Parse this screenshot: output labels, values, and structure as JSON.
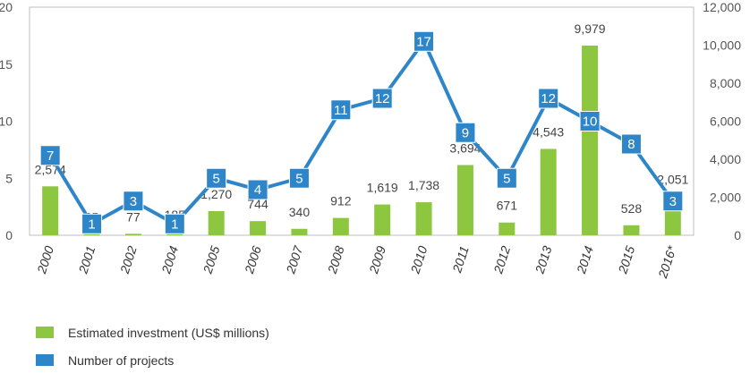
{
  "chart_data": {
    "type": "bar+line",
    "categories": [
      "2000",
      "2001",
      "2002",
      "2004",
      "2005",
      "2006",
      "2007",
      "2008",
      "2009",
      "2010",
      "2011",
      "2012",
      "2013",
      "2014",
      "2015",
      "2016*"
    ],
    "series": [
      {
        "name": "Estimated investment (US$ millions)",
        "type": "bar",
        "axis": "right",
        "color": "#8dc63f",
        "values": [
          2574,
          65,
          77,
          185,
          1270,
          744,
          340,
          912,
          1619,
          1738,
          3694,
          671,
          4543,
          9979,
          528,
          2051
        ],
        "labels": [
          "2,574",
          "65",
          "77",
          "185",
          "1,270",
          "744",
          "340",
          "912",
          "1,619",
          "1,738",
          "3,694",
          "671",
          "4,543",
          "9,979",
          "528",
          "2,051"
        ]
      },
      {
        "name": "Number of projects",
        "type": "line",
        "axis": "left",
        "color": "#2e86c8",
        "values": [
          7,
          1,
          3,
          1,
          5,
          4,
          5,
          11,
          12,
          17,
          9,
          5,
          12,
          10,
          8,
          3
        ]
      }
    ],
    "left_axis": {
      "min": 0,
      "max": 20,
      "ticks": [
        0,
        5,
        10,
        15,
        20
      ],
      "tick_labels": [
        "0",
        "5",
        "10",
        "15",
        "20"
      ]
    },
    "right_axis": {
      "min": 0,
      "max": 12000,
      "ticks": [
        0,
        2000,
        4000,
        6000,
        8000,
        10000,
        12000
      ],
      "tick_labels": [
        "0",
        "2,000",
        "4,000",
        "6,000",
        "8,000",
        "10,000",
        "12,000"
      ]
    },
    "grid": false,
    "legend_position": "bottom-left"
  }
}
